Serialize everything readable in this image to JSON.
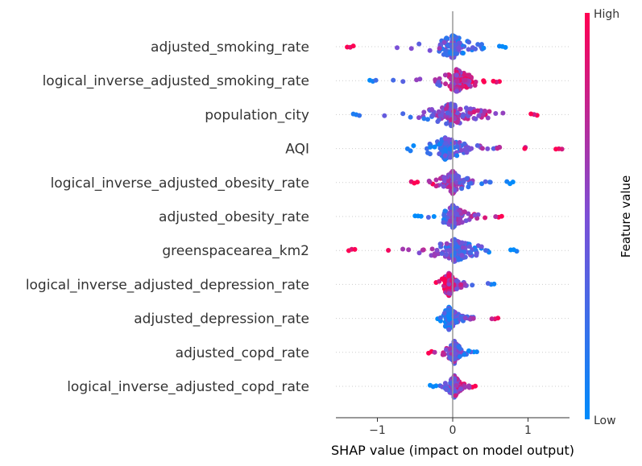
{
  "chart_data": {
    "type": "scatter",
    "subtype": "shap-beeswarm",
    "xlabel": "SHAP value (impact on model output)",
    "xlim": [
      -1.5,
      1.6
    ],
    "x_ticks": [
      -1,
      0,
      1
    ],
    "x_tick_labels": [
      "−1",
      "0",
      "1"
    ],
    "colorbar": {
      "label": "Feature value",
      "high_label": "High",
      "low_label": "Low",
      "low_color": "#008bfb",
      "high_color": "#ff0052"
    },
    "features": [
      {
        "name": "adjusted_smoking_rate",
        "min": -1.4,
        "max": 0.7,
        "center": 0.0,
        "high_side": "negative"
      },
      {
        "name": "logical_inverse_adjusted_smoking_rate",
        "min": -1.1,
        "max": 0.62,
        "center": 0.05,
        "high_side": "positive"
      },
      {
        "name": "population_city",
        "min": -1.32,
        "max": 1.12,
        "center": -0.02,
        "high_side": "positive"
      },
      {
        "name": "AQI",
        "min": -0.6,
        "max": 1.45,
        "center": -0.1,
        "high_side": "positive"
      },
      {
        "name": "logical_inverse_adjusted_obesity_rate",
        "min": -0.55,
        "max": 0.8,
        "center": 0.0,
        "high_side": "negative"
      },
      {
        "name": "adjusted_obesity_rate",
        "min": -0.5,
        "max": 0.65,
        "center": 0.0,
        "high_side": "positive"
      },
      {
        "name": "greenspacearea_km2",
        "min": -1.38,
        "max": 0.85,
        "center": 0.02,
        "high_side": "negative"
      },
      {
        "name": "logical_inverse_adjusted_depression_rate",
        "min": -0.22,
        "max": 0.55,
        "center": -0.05,
        "high_side": "negative"
      },
      {
        "name": "adjusted_depression_rate",
        "min": -0.2,
        "max": 0.6,
        "center": -0.05,
        "high_side": "positive"
      },
      {
        "name": "adjusted_copd_rate",
        "min": -0.32,
        "max": 0.32,
        "center": 0.02,
        "high_side": "negative"
      },
      {
        "name": "logical_inverse_adjusted_copd_rate",
        "min": -0.3,
        "max": 0.3,
        "center": 0.02,
        "high_side": "positive"
      }
    ]
  }
}
